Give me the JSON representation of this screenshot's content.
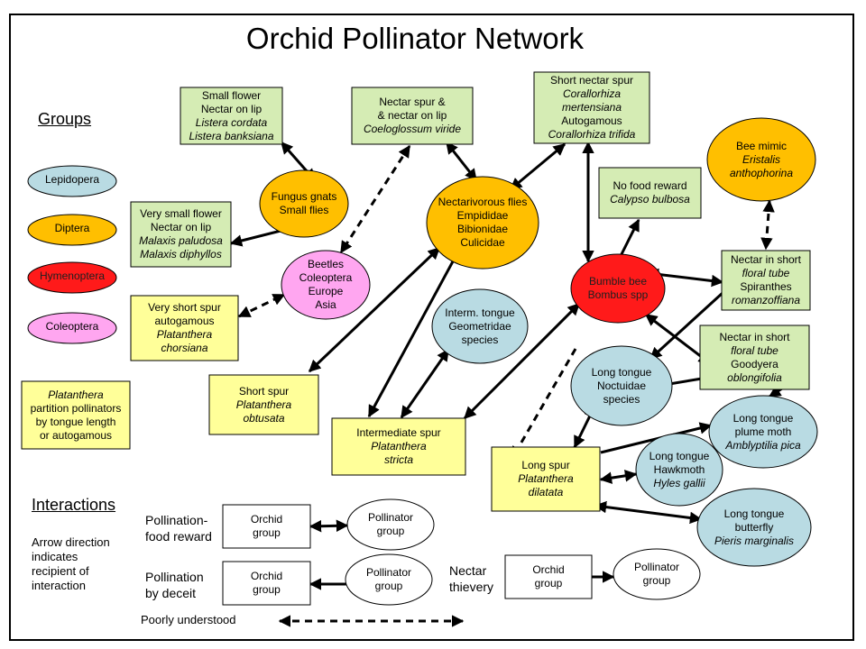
{
  "title": "Orchid Pollinator Network",
  "groups_heading": "Groups",
  "legend": [
    {
      "label": "Lepidopera",
      "color": "#b9dbe3"
    },
    {
      "label": "Diptera",
      "color": "#ffbf00"
    },
    {
      "label": "Hymenoptera",
      "color": "#ff1a1a"
    },
    {
      "label": "Coleoptera",
      "color": "#ffa6f0"
    }
  ],
  "note": [
    "Platanthera",
    "partition pollinators",
    "by tongue length",
    "or autogamous"
  ],
  "orchids": [
    {
      "lines": [
        "Small flower",
        "Nectar on lip",
        "Listera cordata",
        "Listera banksiana"
      ]
    },
    {
      "lines": [
        "Nectar spur &",
        "& nectar on lip",
        "Coeloglossum viride"
      ]
    },
    {
      "lines": [
        "Short nectar spur",
        "Corallorhiza  mertensiana",
        "Autogamous",
        "Corallorhiza  trifida"
      ]
    },
    {
      "lines": [
        "No food reward",
        "Calypso bulbosa"
      ]
    },
    {
      "lines": [
        "Very small flower",
        "Nectar on lip",
        "Malaxis paludosa",
        "Malaxis diphyllos"
      ]
    },
    {
      "lines": [
        "Very short spur",
        "autogamous",
        "Platanthera",
        "chorsiana"
      ]
    },
    {
      "lines": [
        "Nectar in short",
        "floral tube",
        "Spiranthes",
        "romanzoffiana"
      ]
    },
    {
      "lines": [
        "Nectar in short",
        "floral tube",
        "Goodyera",
        "oblongifolia"
      ]
    },
    {
      "lines": [
        "Short spur",
        "Platanthera",
        "obtusata"
      ]
    },
    {
      "lines": [
        "Intermediate spur",
        "Platanthera",
        "stricta"
      ]
    },
    {
      "lines": [
        "Long spur",
        "Platanthera",
        "dilatata"
      ]
    }
  ],
  "pollinators": [
    {
      "lines": [
        "Fungus gnats",
        "Small flies"
      ]
    },
    {
      "lines": [
        "Nectarivorous flies",
        "Empididae",
        "Bibionidae",
        "Culicidae"
      ]
    },
    {
      "lines": [
        "Bee mimic",
        "Eristalis",
        "anthophorina"
      ]
    },
    {
      "lines": [
        "Beetles",
        "Coleoptera",
        "Europe",
        "Asia"
      ]
    },
    {
      "lines": [
        "Bumble bee",
        "Bombus spp"
      ]
    },
    {
      "lines": [
        "Interm. tongue",
        "Geometridae",
        "species"
      ]
    },
    {
      "lines": [
        "Long tongue",
        "Noctuidae",
        "species"
      ]
    },
    {
      "lines": [
        "Long tongue",
        "plume moth",
        "Amblyptilia pica"
      ]
    },
    {
      "lines": [
        "Long tongue",
        "Hawkmoth",
        "Hyles gallii"
      ]
    },
    {
      "lines": [
        "Long tongue",
        "butterfly",
        "Pieris marginalis"
      ]
    }
  ],
  "interactions": {
    "heading": "Interactions",
    "explanation": [
      "Arrow direction",
      "indicates",
      "recipient of",
      "interaction"
    ],
    "food_reward": [
      "Pollination-",
      "food reward"
    ],
    "deceit": [
      "Pollination",
      "by deceit"
    ],
    "thievery": [
      "Nectar",
      "thievery"
    ],
    "poorly": "Poorly understood",
    "orchid_group": [
      "Orchid",
      "group"
    ],
    "pollinator_group": [
      "Pollinator",
      "group"
    ]
  }
}
